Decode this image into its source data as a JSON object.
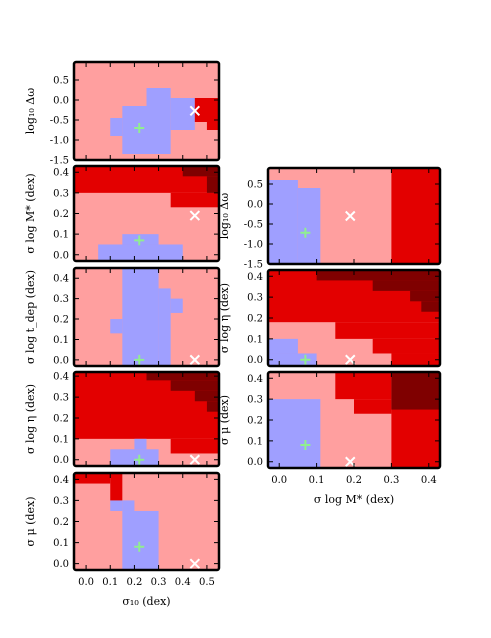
{
  "colors": {
    "blue": "#9f9fff",
    "pink": "#ff9f9f",
    "red": "#e30000",
    "dark": "#7f0000",
    "plus": "#90ee90",
    "cross": "#ffffff"
  },
  "chart_data": [
    {
      "type": "heatmap",
      "ylabel": "log₁₀ Δω",
      "xlim": [
        -0.05,
        0.55
      ],
      "ylim": [
        -1.5,
        0.95
      ],
      "yticks": [
        "0.5",
        "0.0",
        "-0.5",
        "-1.0",
        "-1.5"
      ],
      "yvals": [
        0.5,
        0.0,
        -0.5,
        -1.0,
        -1.5
      ],
      "plus": [
        0.22,
        -0.7
      ],
      "cross": [
        0.45,
        -0.27
      ],
      "rects": [
        {
          "x0": -0.05,
          "x1": 0.55,
          "y0": -1.5,
          "y1": 0.95,
          "c": "pink"
        },
        {
          "x0": 0.15,
          "x1": 0.35,
          "y0": -1.35,
          "y1": -0.15,
          "c": "blue"
        },
        {
          "x0": 0.25,
          "x1": 0.35,
          "y0": -0.15,
          "y1": 0.3,
          "c": "blue"
        },
        {
          "x0": 0.35,
          "x1": 0.45,
          "y0": -0.75,
          "y1": 0.05,
          "c": "blue"
        },
        {
          "x0": 0.1,
          "x1": 0.15,
          "y0": -0.9,
          "y1": -0.45,
          "c": "blue"
        },
        {
          "x0": 0.45,
          "x1": 0.55,
          "y0": -0.55,
          "y1": 0.05,
          "c": "red"
        },
        {
          "x0": 0.5,
          "x1": 0.55,
          "y0": -0.75,
          "y1": -0.55,
          "c": "red"
        }
      ]
    },
    {
      "type": "heatmap",
      "ylabel": "σ log M* (dex)",
      "xlim": [
        -0.05,
        0.55
      ],
      "ylim": [
        -0.03,
        0.43
      ],
      "yticks": [
        "0.4",
        "0.3",
        "0.2",
        "0.1",
        "0.0"
      ],
      "yvals": [
        0.4,
        0.3,
        0.2,
        0.1,
        0.0
      ],
      "plus": [
        0.22,
        0.07
      ],
      "cross": [
        0.45,
        0.19
      ],
      "rects": [
        {
          "x0": -0.05,
          "x1": 0.55,
          "y0": -0.03,
          "y1": 0.43,
          "c": "pink"
        },
        {
          "x0": -0.05,
          "x1": 0.55,
          "y0": 0.3,
          "y1": 0.43,
          "c": "red"
        },
        {
          "x0": 0.35,
          "x1": 0.55,
          "y0": 0.23,
          "y1": 0.3,
          "c": "red"
        },
        {
          "x0": 0.4,
          "x1": 0.55,
          "y0": 0.38,
          "y1": 0.43,
          "c": "dark"
        },
        {
          "x0": 0.5,
          "x1": 0.55,
          "y0": 0.3,
          "y1": 0.38,
          "c": "dark"
        },
        {
          "x0": 0.15,
          "x1": 0.3,
          "y0": 0.05,
          "y1": 0.1,
          "c": "blue"
        },
        {
          "x0": 0.05,
          "x1": 0.4,
          "y0": -0.03,
          "y1": 0.05,
          "c": "blue"
        }
      ]
    },
    {
      "type": "heatmap",
      "ylabel": "σ log t_dep (dex)",
      "xlim": [
        -0.05,
        0.55
      ],
      "ylim": [
        -0.03,
        0.45
      ],
      "yticks": [
        "0.4",
        "0.3",
        "0.2",
        "0.1",
        "0.0"
      ],
      "yvals": [
        0.4,
        0.3,
        0.2,
        0.1,
        0.0
      ],
      "plus": [
        0.22,
        0.0
      ],
      "cross": [
        0.45,
        0.0
      ],
      "rects": [
        {
          "x0": -0.05,
          "x1": 0.55,
          "y0": -0.03,
          "y1": 0.45,
          "c": "pink"
        },
        {
          "x0": 0.15,
          "x1": 0.3,
          "y0": -0.03,
          "y1": 0.45,
          "c": "blue"
        },
        {
          "x0": 0.3,
          "x1": 0.35,
          "y0": -0.03,
          "y1": 0.35,
          "c": "blue"
        },
        {
          "x0": 0.35,
          "x1": 0.4,
          "y0": 0.23,
          "y1": 0.3,
          "c": "blue"
        },
        {
          "x0": 0.1,
          "x1": 0.15,
          "y0": 0.13,
          "y1": 0.2,
          "c": "blue"
        }
      ]
    },
    {
      "type": "heatmap",
      "ylabel": "σ log η (dex)",
      "xlim": [
        -0.05,
        0.55
      ],
      "ylim": [
        -0.03,
        0.42
      ],
      "yticks": [
        "0.4",
        "0.3",
        "0.2",
        "0.1",
        "0.0"
      ],
      "yvals": [
        0.4,
        0.3,
        0.2,
        0.1,
        0.0
      ],
      "plus": [
        0.22,
        0.0
      ],
      "cross": [
        0.45,
        0.0
      ],
      "rects": [
        {
          "x0": -0.05,
          "x1": 0.55,
          "y0": -0.03,
          "y1": 0.42,
          "c": "pink"
        },
        {
          "x0": -0.05,
          "x1": 0.55,
          "y0": 0.1,
          "y1": 0.42,
          "c": "red"
        },
        {
          "x0": 0.35,
          "x1": 0.55,
          "y0": 0.03,
          "y1": 0.1,
          "c": "red"
        },
        {
          "x0": 0.25,
          "x1": 0.55,
          "y0": 0.38,
          "y1": 0.42,
          "c": "dark"
        },
        {
          "x0": 0.35,
          "x1": 0.55,
          "y0": 0.33,
          "y1": 0.38,
          "c": "dark"
        },
        {
          "x0": 0.45,
          "x1": 0.55,
          "y0": 0.28,
          "y1": 0.33,
          "c": "dark"
        },
        {
          "x0": 0.5,
          "x1": 0.55,
          "y0": 0.23,
          "y1": 0.28,
          "c": "dark"
        },
        {
          "x0": 0.1,
          "x1": 0.3,
          "y0": -0.03,
          "y1": 0.05,
          "c": "blue"
        },
        {
          "x0": 0.2,
          "x1": 0.25,
          "y0": 0.05,
          "y1": 0.1,
          "c": "blue"
        }
      ]
    },
    {
      "type": "heatmap",
      "ylabel": "σ μ (dex)",
      "xlim": [
        -0.05,
        0.55
      ],
      "ylim": [
        -0.03,
        0.43
      ],
      "yticks": [
        "0.4",
        "0.3",
        "0.2",
        "0.1",
        "0.0"
      ],
      "yvals": [
        0.4,
        0.3,
        0.2,
        0.1,
        0.0
      ],
      "plus": [
        0.22,
        0.08
      ],
      "cross": [
        0.45,
        0.0
      ],
      "xticks": [
        "0.0",
        "0.1",
        "0.2",
        "0.3",
        "0.4",
        "0.5"
      ],
      "xvals": [
        0.0,
        0.1,
        0.2,
        0.3,
        0.4,
        0.5
      ],
      "xlabel": "σ₁₀ (dex)",
      "rects": [
        {
          "x0": -0.05,
          "x1": 0.55,
          "y0": -0.03,
          "y1": 0.43,
          "c": "pink"
        },
        {
          "x0": 0.15,
          "x1": 0.3,
          "y0": -0.03,
          "y1": 0.25,
          "c": "blue"
        },
        {
          "x0": 0.1,
          "x1": 0.15,
          "y0": 0.25,
          "y1": 0.3,
          "c": "blue"
        },
        {
          "x0": 0.15,
          "x1": 0.2,
          "y0": 0.25,
          "y1": 0.3,
          "c": "blue"
        },
        {
          "x0": -0.05,
          "x1": 0.1,
          "y0": 0.38,
          "y1": 0.43,
          "c": "red"
        },
        {
          "x0": 0.1,
          "x1": 0.15,
          "y0": 0.3,
          "y1": 0.43,
          "c": "red"
        }
      ]
    },
    {
      "type": "heatmap",
      "ylabel": "log₁₀ Δω",
      "xlim": [
        -0.03,
        0.43
      ],
      "ylim": [
        -1.5,
        0.9
      ],
      "yticks": [
        "0.5",
        "0.0",
        "-0.5",
        "-1.0",
        "-1.5"
      ],
      "yvals": [
        0.5,
        0.0,
        -0.5,
        -1.0,
        -1.5
      ],
      "plus": [
        0.07,
        -0.72
      ],
      "cross": [
        0.19,
        -0.3
      ],
      "rects": [
        {
          "x0": -0.03,
          "x1": 0.43,
          "y0": -1.5,
          "y1": 0.9,
          "c": "pink"
        },
        {
          "x0": -0.03,
          "x1": 0.05,
          "y0": -1.5,
          "y1": 0.6,
          "c": "blue"
        },
        {
          "x0": 0.05,
          "x1": 0.11,
          "y0": -1.5,
          "y1": 0.4,
          "c": "blue"
        },
        {
          "x0": 0.3,
          "x1": 0.43,
          "y0": -1.5,
          "y1": 0.9,
          "c": "red"
        }
      ]
    },
    {
      "type": "heatmap",
      "ylabel": "σ log η (dex)",
      "xlim": [
        -0.03,
        0.43
      ],
      "ylim": [
        -0.03,
        0.43
      ],
      "yticks": [
        "0.4",
        "0.3",
        "0.2",
        "0.1",
        "0.0"
      ],
      "yvals": [
        0.4,
        0.3,
        0.2,
        0.1,
        0.0
      ],
      "plus": [
        0.07,
        0.0
      ],
      "cross": [
        0.19,
        0.0
      ],
      "rects": [
        {
          "x0": -0.03,
          "x1": 0.43,
          "y0": -0.03,
          "y1": 0.43,
          "c": "pink"
        },
        {
          "x0": -0.03,
          "x1": 0.43,
          "y0": 0.18,
          "y1": 0.43,
          "c": "red"
        },
        {
          "x0": 0.15,
          "x1": 0.43,
          "y0": 0.1,
          "y1": 0.18,
          "c": "red"
        },
        {
          "x0": 0.25,
          "x1": 0.43,
          "y0": 0.03,
          "y1": 0.1,
          "c": "red"
        },
        {
          "x0": 0.3,
          "x1": 0.43,
          "y0": -0.03,
          "y1": 0.03,
          "c": "red"
        },
        {
          "x0": 0.1,
          "x1": 0.43,
          "y0": 0.38,
          "y1": 0.43,
          "c": "dark"
        },
        {
          "x0": 0.25,
          "x1": 0.43,
          "y0": 0.33,
          "y1": 0.38,
          "c": "dark"
        },
        {
          "x0": 0.35,
          "x1": 0.43,
          "y0": 0.28,
          "y1": 0.33,
          "c": "dark"
        },
        {
          "x0": 0.38,
          "x1": 0.43,
          "y0": 0.23,
          "y1": 0.28,
          "c": "dark"
        },
        {
          "x0": -0.03,
          "x1": 0.05,
          "y0": 0.03,
          "y1": 0.1,
          "c": "blue"
        },
        {
          "x0": -0.03,
          "x1": 0.1,
          "y0": -0.03,
          "y1": 0.03,
          "c": "blue"
        }
      ]
    },
    {
      "type": "heatmap",
      "ylabel": "σ μ (dex)",
      "xlim": [
        -0.03,
        0.43
      ],
      "ylim": [
        -0.03,
        0.43
      ],
      "yticks": [
        "0.4",
        "0.3",
        "0.2",
        "0.1",
        "0.0"
      ],
      "yvals": [
        0.4,
        0.3,
        0.2,
        0.1,
        0.0
      ],
      "plus": [
        0.07,
        0.08
      ],
      "cross": [
        0.19,
        0.0
      ],
      "xticks": [
        "0.0",
        "0.1",
        "0.2",
        "0.3",
        "0.4"
      ],
      "xvals": [
        0.0,
        0.1,
        0.2,
        0.3,
        0.4
      ],
      "xlabel": "σ log M* (dex)",
      "rects": [
        {
          "x0": -0.03,
          "x1": 0.43,
          "y0": -0.03,
          "y1": 0.43,
          "c": "pink"
        },
        {
          "x0": -0.03,
          "x1": 0.11,
          "y0": -0.03,
          "y1": 0.3,
          "c": "blue"
        },
        {
          "x0": 0.3,
          "x1": 0.43,
          "y0": -0.03,
          "y1": 0.43,
          "c": "red"
        },
        {
          "x0": 0.15,
          "x1": 0.3,
          "y0": 0.3,
          "y1": 0.43,
          "c": "red"
        },
        {
          "x0": 0.2,
          "x1": 0.3,
          "y0": 0.23,
          "y1": 0.3,
          "c": "red"
        },
        {
          "x0": 0.3,
          "x1": 0.43,
          "y0": 0.25,
          "y1": 0.43,
          "c": "dark"
        }
      ]
    }
  ]
}
